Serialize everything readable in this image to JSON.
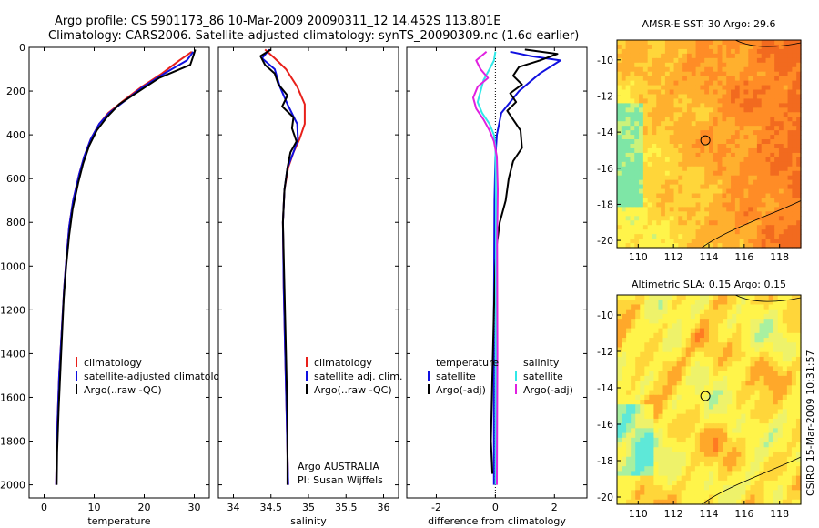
{
  "header": {
    "line1": "Argo profile: CS 5901173_86 10-Mar-2009 20090311_12 14.452S 113.801E",
    "line2": "Climatology: CARS2006. Satellite-adjusted climatology: synTS_20090309.nc (1.6d earlier)"
  },
  "footer": {
    "credit": "CSIRO 15-Mar-2009 10:31:57"
  },
  "colors": {
    "climatology": "#e8201a",
    "satellite": "#1010e0",
    "argo": "#000000",
    "cyan": "#30e8e8",
    "magenta": "#e020e0"
  },
  "chart_data": [
    {
      "id": "temperature",
      "type": "line",
      "xlabel": "temperature",
      "ylabel": "",
      "xlim": [
        -3,
        33
      ],
      "ylim": [
        2060,
        0
      ],
      "xticks": [
        0,
        10,
        20,
        30
      ],
      "yticks": [
        0,
        200,
        400,
        600,
        800,
        1000,
        1200,
        1400,
        1600,
        1800,
        2000
      ],
      "legend": {
        "position": "lower-right",
        "title_left": "",
        "title_right": ""
      },
      "series": [
        {
          "name": "climatology",
          "color": "#e8201a",
          "x": [
            29.5,
            27,
            23.5,
            19.5,
            15.5,
            12.8,
            11,
            9.3,
            8,
            7,
            5.8,
            5,
            4.5,
            4,
            3.5,
            3,
            2.7,
            2.5,
            2.4
          ],
          "y": [
            20,
            60,
            120,
            180,
            250,
            300,
            350,
            420,
            500,
            580,
            700,
            820,
            950,
            1100,
            1300,
            1500,
            1700,
            1850,
            2000
          ]
        },
        {
          "name": "satellite-adjusted climatology",
          "color": "#1010e0",
          "x": [
            29.8,
            28.5,
            24,
            19.8,
            15.8,
            13,
            11,
            9.3,
            8,
            7,
            5.8,
            5,
            4.5,
            4,
            3.5,
            3,
            2.7,
            2.5,
            2.4
          ],
          "y": [
            20,
            60,
            120,
            180,
            250,
            300,
            350,
            420,
            500,
            580,
            700,
            820,
            950,
            1100,
            1300,
            1500,
            1700,
            1850,
            2000
          ]
        },
        {
          "name": "Argo(..raw -QC)",
          "color": "#000000",
          "x": [
            30.2,
            29.8,
            29.2,
            23,
            19,
            15,
            12.5,
            10.5,
            9,
            7.8,
            6.8,
            5.7,
            5,
            4.4,
            3.9,
            3.4,
            2.9,
            2.6,
            2.5
          ],
          "y": [
            10,
            40,
            80,
            140,
            200,
            260,
            320,
            380,
            450,
            530,
            620,
            740,
            860,
            1000,
            1150,
            1400,
            1650,
            1850,
            2000
          ]
        }
      ]
    },
    {
      "id": "salinity",
      "type": "line",
      "xlabel": "salinity",
      "ylabel": "",
      "xlim": [
        33.8,
        36.2
      ],
      "ylim": [
        2060,
        0
      ],
      "xticks": [
        34,
        34.5,
        35,
        35.5,
        36
      ],
      "yticks": [
        0,
        200,
        400,
        600,
        800,
        1000,
        1200,
        1400,
        1600,
        1800,
        2000
      ],
      "annotations": [
        "Argo AUSTRALIA",
        "PI: Susan Wijffels"
      ],
      "legend": {
        "position": "lower-right",
        "title_left": "",
        "title_right": ""
      },
      "series": [
        {
          "name": "climatology",
          "color": "#e8201a",
          "x": [
            34.42,
            34.55,
            34.7,
            34.85,
            34.95,
            34.95,
            34.88,
            34.8,
            34.73,
            34.68,
            34.66,
            34.67,
            34.69,
            34.71,
            34.73
          ],
          "y": [
            10,
            50,
            100,
            180,
            260,
            350,
            420,
            480,
            550,
            650,
            800,
            1100,
            1400,
            1700,
            2000
          ]
        },
        {
          "name": "satellite adj. clim.",
          "color": "#1010e0",
          "x": [
            34.48,
            34.38,
            34.55,
            34.62,
            34.72,
            34.85,
            34.86,
            34.8,
            34.72,
            34.68,
            34.66,
            34.67,
            34.69,
            34.71,
            34.73
          ],
          "y": [
            10,
            50,
            100,
            180,
            260,
            350,
            420,
            480,
            550,
            650,
            800,
            1100,
            1400,
            1700,
            2000
          ]
        },
        {
          "name": "Argo(..raw -QC)",
          "color": "#000000",
          "x": [
            34.5,
            34.36,
            34.42,
            34.55,
            34.6,
            34.72,
            34.65,
            34.8,
            34.78,
            34.84,
            34.76,
            34.72,
            34.68,
            34.66,
            34.68,
            34.7,
            34.72,
            34.72
          ],
          "y": [
            10,
            40,
            80,
            120,
            170,
            220,
            270,
            320,
            370,
            430,
            480,
            550,
            650,
            800,
            1100,
            1400,
            1700,
            2000
          ]
        }
      ]
    },
    {
      "id": "difference",
      "type": "line",
      "xlabel": "difference from climatology",
      "ylabel": "",
      "xlim": [
        -3,
        3.1
      ],
      "ylim": [
        2060,
        0
      ],
      "xticks": [
        -2,
        0,
        2
      ],
      "yticks": [
        0,
        200,
        400,
        600,
        800,
        1000,
        1200,
        1400,
        1600,
        1800,
        2000
      ],
      "legend": {
        "position": "lower-center",
        "title_left": "temperature",
        "title_right": "salinity"
      },
      "series": [
        {
          "name": "satellite",
          "group": "temperature",
          "color": "#1010e0",
          "x": [
            0.5,
            1.2,
            2.2,
            1.5,
            0.8,
            0.2,
            0.05,
            0,
            -0.03,
            -0.05,
            -0.05
          ],
          "y": [
            20,
            40,
            60,
            120,
            200,
            300,
            400,
            500,
            700,
            1200,
            2000
          ]
        },
        {
          "name": "Argo(-adj)",
          "group": "temperature",
          "color": "#000000",
          "x": [
            1.0,
            2.1,
            1.5,
            0.8,
            0.6,
            0.9,
            0.5,
            0.7,
            0.4,
            0.6,
            0.85,
            0.9,
            0.6,
            0.45,
            0.35,
            0.15,
            0.05,
            0,
            -0.05,
            -0.1,
            -0.15,
            -0.1
          ],
          "y": [
            10,
            30,
            60,
            90,
            130,
            170,
            210,
            250,
            290,
            330,
            380,
            460,
            520,
            600,
            700,
            800,
            900,
            1000,
            1200,
            1500,
            1800,
            1950
          ]
        },
        {
          "name": "satellite",
          "group": "salinity",
          "color": "#30e8e8",
          "x": [
            0,
            -0.05,
            -0.2,
            -0.4,
            -0.5,
            -0.6,
            -0.45,
            -0.2,
            -0.05,
            0,
            0.02,
            0.02
          ],
          "y": [
            20,
            60,
            100,
            150,
            200,
            250,
            300,
            350,
            400,
            450,
            700,
            2000
          ]
        },
        {
          "name": "Argo(-adj)",
          "group": "salinity",
          "color": "#e020e0",
          "x": [
            -0.3,
            -0.65,
            -0.5,
            -0.25,
            -0.6,
            -0.75,
            -0.65,
            -0.4,
            -0.2,
            -0.05,
            0.05,
            0.08,
            0.06,
            0.07,
            0.05
          ],
          "y": [
            20,
            60,
            100,
            140,
            180,
            230,
            280,
            330,
            380,
            430,
            500,
            650,
            900,
            1400,
            2000
          ]
        }
      ]
    },
    {
      "id": "sst-map",
      "type": "heatmap",
      "title": "AMSR-E SST: 30 Argo: 29.6",
      "xlim": [
        108.8,
        119.2
      ],
      "ylim": [
        -20.4,
        -8.9
      ],
      "xticks": [
        110,
        112,
        114,
        116,
        118
      ],
      "yticks": [
        -10,
        -12,
        -14,
        -16,
        -18,
        -20
      ],
      "marker": {
        "lon": 113.801,
        "lat": -14.452
      },
      "scale": [
        "#7ee6a6",
        "#ccf27a",
        "#fff44a",
        "#ffd63a",
        "#ffb02e",
        "#ff8c26",
        "#f26a1f"
      ]
    },
    {
      "id": "sla-map",
      "type": "heatmap",
      "title": "Altimetric SLA: 0.15 Argo: 0.15",
      "xlim": [
        108.8,
        119.2
      ],
      "ylim": [
        -20.4,
        -8.9
      ],
      "xticks": [
        110,
        112,
        114,
        116,
        118
      ],
      "yticks": [
        -10,
        -12,
        -14,
        -16,
        -18,
        -20
      ],
      "marker": {
        "lon": 113.801,
        "lat": -14.452
      },
      "scale": [
        "#5ee8d8",
        "#a8f0a0",
        "#eef26a",
        "#fff44a",
        "#ffd63a",
        "#ffa82a",
        "#ff7a22"
      ]
    }
  ]
}
